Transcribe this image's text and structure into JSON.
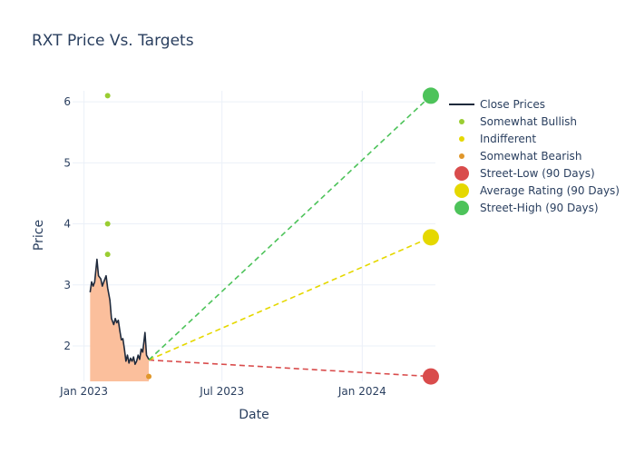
{
  "chart_data": {
    "type": "line",
    "title": "RXT Price Vs. Targets",
    "xlabel": "Date",
    "ylabel": "Price",
    "xlim": [
      "2022-12-17",
      "2024-04-06"
    ],
    "ylim": [
      1.42,
      6.18
    ],
    "x_ticks": [
      {
        "date": "2023-01-01",
        "label": "Jan 2023"
      },
      {
        "date": "2023-07-01",
        "label": "Jul 2023"
      },
      {
        "date": "2024-01-01",
        "label": "Jan 2024"
      }
    ],
    "y_ticks": [
      2,
      3,
      4,
      5,
      6
    ],
    "grid": true,
    "legend_position": "right",
    "close_prices": {
      "name": "Close Prices",
      "color": "#1f2a3c",
      "fill_color": "#fbbf9c",
      "points": [
        [
          "2023-01-09",
          2.88
        ],
        [
          "2023-01-11",
          3.05
        ],
        [
          "2023-01-13",
          2.98
        ],
        [
          "2023-01-15",
          3.05
        ],
        [
          "2023-01-18",
          3.42
        ],
        [
          "2023-01-20",
          3.15
        ],
        [
          "2023-01-23",
          3.1
        ],
        [
          "2023-01-25",
          2.98
        ],
        [
          "2023-01-27",
          3.05
        ],
        [
          "2023-01-30",
          3.15
        ],
        [
          "2023-02-01",
          2.95
        ],
        [
          "2023-02-04",
          2.75
        ],
        [
          "2023-02-06",
          2.45
        ],
        [
          "2023-02-09",
          2.35
        ],
        [
          "2023-02-11",
          2.45
        ],
        [
          "2023-02-13",
          2.38
        ],
        [
          "2023-02-15",
          2.42
        ],
        [
          "2023-02-17",
          2.25
        ],
        [
          "2023-02-19",
          2.1
        ],
        [
          "2023-02-21",
          2.12
        ],
        [
          "2023-02-23",
          1.95
        ],
        [
          "2023-02-25",
          1.75
        ],
        [
          "2023-02-27",
          1.85
        ],
        [
          "2023-03-01",
          1.72
        ],
        [
          "2023-03-03",
          1.8
        ],
        [
          "2023-03-05",
          1.75
        ],
        [
          "2023-03-07",
          1.82
        ],
        [
          "2023-03-09",
          1.7
        ],
        [
          "2023-03-11",
          1.75
        ],
        [
          "2023-03-13",
          1.85
        ],
        [
          "2023-03-15",
          1.78
        ],
        [
          "2023-03-17",
          1.95
        ],
        [
          "2023-03-19",
          1.9
        ],
        [
          "2023-03-22",
          2.22
        ],
        [
          "2023-03-24",
          1.85
        ],
        [
          "2023-03-27",
          1.78
        ]
      ]
    },
    "analyst_ratings": [
      {
        "name": "Somewhat Bullish",
        "color": "#9acd32",
        "points": [
          [
            "2023-02-01",
            6.1
          ],
          [
            "2023-02-01",
            4.0
          ],
          [
            "2023-02-01",
            3.5
          ]
        ]
      },
      {
        "name": "Indifferent",
        "color": "#e5d800",
        "points": []
      },
      {
        "name": "Somewhat Bearish",
        "color": "#e0962a",
        "points": [
          [
            "2023-03-27",
            1.5
          ]
        ]
      }
    ],
    "targets": {
      "start": {
        "date": "2023-03-27",
        "value": 1.77
      },
      "end_date": "2024-03-31",
      "series": [
        {
          "name": "Street-Low (90 Days)",
          "color": "#d94c4c",
          "value": 1.5
        },
        {
          "name": "Average Rating (90 Days)",
          "color": "#e5d800",
          "value": 3.78
        },
        {
          "name": "Street-High (90 Days)",
          "color": "#4dc35a",
          "value": 6.1
        }
      ]
    }
  }
}
